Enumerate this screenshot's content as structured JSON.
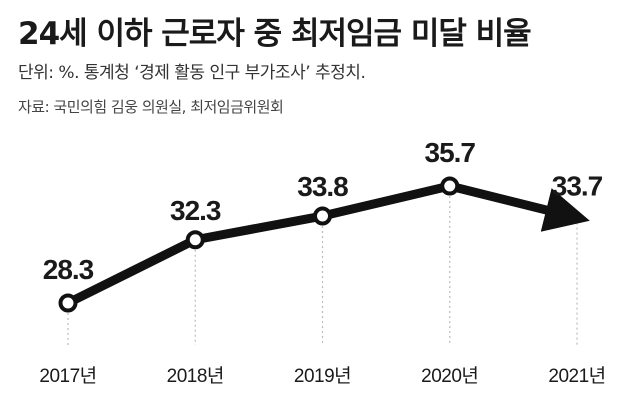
{
  "header": {
    "title": "24세 이하 근로자 중 최저임금 미달 비율",
    "subtitle": "단위: %. 통계청 ‘경제 활동 인구 부가조사’ 추정치.",
    "source": "자료: 국민의힘 김웅 의원실, 최저임금위원회"
  },
  "chart_data": {
    "type": "line",
    "x": [
      "2017년",
      "2018년",
      "2019년",
      "2020년",
      "2021년"
    ],
    "series": [
      {
        "values": [
          28.3,
          32.3,
          33.8,
          35.7,
          33.7
        ]
      }
    ],
    "value_labels": [
      "28.3",
      "32.3",
      "33.8",
      "35.7",
      "33.7"
    ],
    "ylim": [
      28.3,
      35.7
    ],
    "grid": false,
    "last_point_marker": "arrow",
    "colors": {
      "line": "#111111",
      "marker_fill": "#ffffff",
      "guide": "#bbbbbb"
    }
  }
}
